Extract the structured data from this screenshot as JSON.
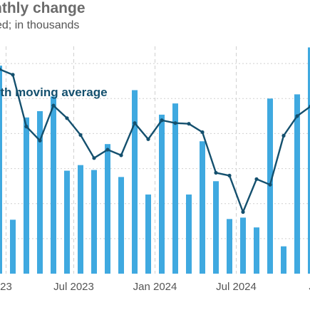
{
  "header": {
    "title": "nthly change",
    "subtitle": "ed; in thousands"
  },
  "colors": {
    "bar": "#3fa9e0",
    "line": "#14506e",
    "grid": "#d0d0d0"
  },
  "chart_data": {
    "type": "bar",
    "title": "nthly change",
    "subtitle": "ed; in thousands",
    "xlabel": "",
    "ylabel": "",
    "ylim": [
      0,
      350
    ],
    "grid": true,
    "x_tick_labels": [
      "23",
      "Jul 2023",
      "Jan 2024",
      "Jul 2024",
      "Jan"
    ],
    "series": [
      {
        "name": "",
        "type": "bar",
        "values": [
          297,
          77,
          223,
          232,
          253,
          147,
          155,
          148,
          185,
          138,
          262,
          113,
          227,
          243,
          113,
          189,
          132,
          78,
          80,
          66,
          250,
          39,
          256,
          323
        ]
      },
      {
        "name": "nth moving average",
        "type": "line",
        "values": [
          292,
          284,
          210,
          190,
          240,
          222,
          198,
          165,
          177,
          169,
          215,
          192,
          219,
          215,
          214,
          202,
          144,
          140,
          88,
          135,
          127,
          197,
          225,
          239
        ]
      }
    ]
  }
}
